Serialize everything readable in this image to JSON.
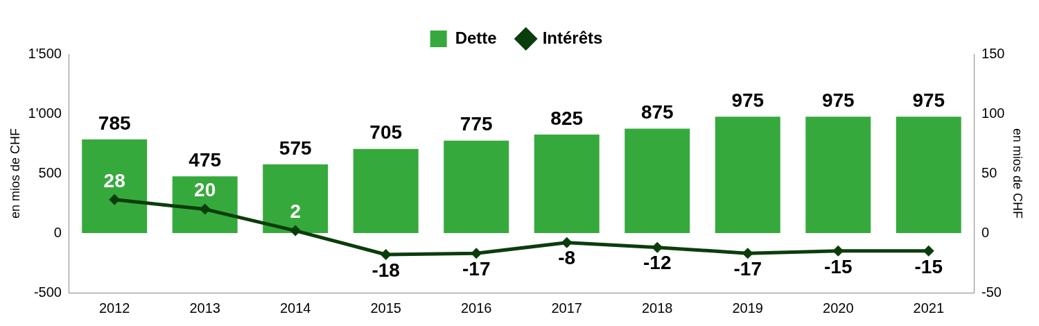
{
  "chart_data": {
    "type": "bar",
    "categories": [
      "2012",
      "2013",
      "2014",
      "2015",
      "2016",
      "2017",
      "2018",
      "2019",
      "2020",
      "2021"
    ],
    "ylabel": "en mios de CHF",
    "y2label": "en mios de CHF",
    "series": [
      {
        "name": "Dette",
        "color": "#36a93c",
        "values": [
          785,
          475,
          575,
          705,
          775,
          825,
          875,
          975,
          975,
          975
        ]
      },
      {
        "name": "Intérêts",
        "type": "line",
        "axis": "y2",
        "color": "#0b3d0b",
        "values": [
          28,
          20,
          2,
          -18,
          -17,
          -8,
          -12,
          -17,
          -15,
          -15
        ]
      }
    ],
    "ylim": [
      -500,
      1500
    ],
    "yticks": [
      {
        "value": -500,
        "label": "-500"
      },
      {
        "value": 0,
        "label": "0"
      },
      {
        "value": 500,
        "label": "500"
      },
      {
        "value": 1000,
        "label": "1'000"
      },
      {
        "value": 1500,
        "label": "1'500"
      }
    ],
    "y2lim": [
      -50,
      150
    ],
    "y2ticks": [
      -50,
      0,
      50,
      100,
      150
    ],
    "grid": false,
    "legend": "top",
    "marker": "diamond",
    "line_style": "solid",
    "data_labels": true
  }
}
